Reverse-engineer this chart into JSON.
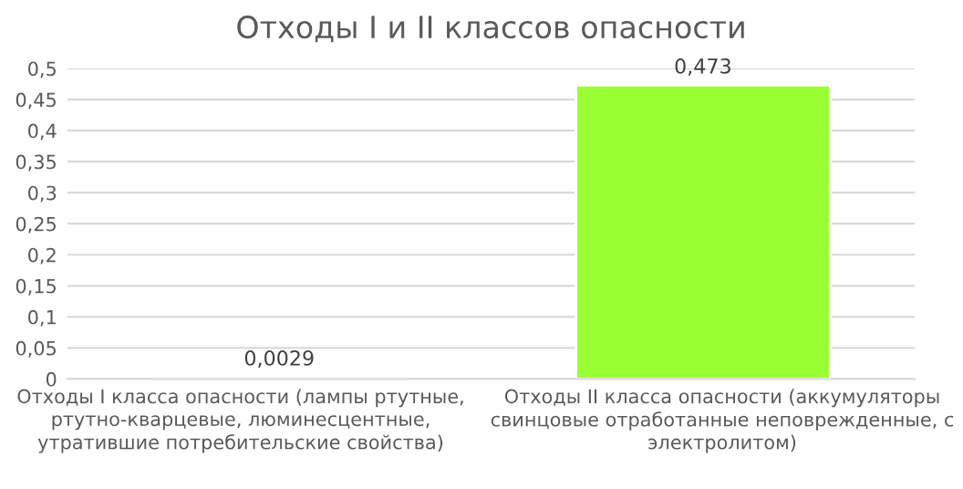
{
  "chart_data": {
    "type": "bar",
    "title": "Отходы I и II классов опасности",
    "categories": [
      "Отходы I класса опасности (лампы ртутные, ртутно-кварцевые, люминесцентные, утратившие потребительские свойства)",
      "Отходы II класса опасности (аккумуляторы свинцовые отработанные неповрежденные, с электролитом)"
    ],
    "values": [
      0.0029,
      0.473
    ],
    "color": "#99ff33",
    "value_labels": [
      "0,0029",
      "0,473"
    ],
    "ylim": [
      0,
      0.5
    ],
    "yticks": [
      {
        "value": 0,
        "label": "0"
      },
      {
        "value": 0.05,
        "label": "0,05"
      },
      {
        "value": 0.1,
        "label": "0,1"
      },
      {
        "value": 0.15,
        "label": "0,15"
      },
      {
        "value": 0.2,
        "label": "0,2"
      },
      {
        "value": 0.25,
        "label": "0,25"
      },
      {
        "value": 0.3,
        "label": "0,3"
      },
      {
        "value": 0.35,
        "label": "0,35"
      },
      {
        "value": 0.4,
        "label": "0,4"
      },
      {
        "value": 0.45,
        "label": "0,45"
      },
      {
        "value": 0.5,
        "label": "0,5"
      }
    ],
    "grid": "y",
    "legend": false
  }
}
